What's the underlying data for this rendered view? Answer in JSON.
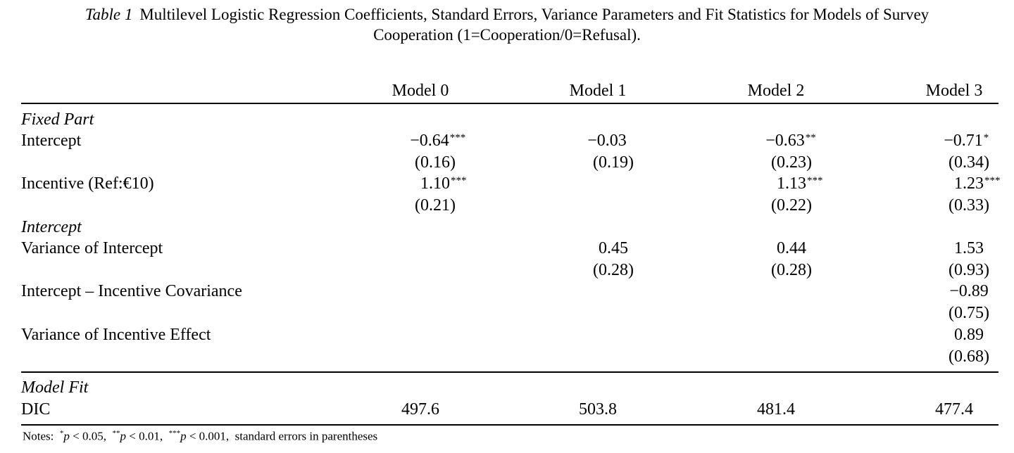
{
  "caption": {
    "label": "Table 1",
    "text": "Multilevel Logistic Regression Coefficients, Standard Errors, Variance Parameters and Fit Statistics for Models of Survey",
    "text2": "Cooperation (1=Cooperation/0=Refusal)."
  },
  "columns": [
    "Model 0",
    "Model 1",
    "Model 2",
    "Model 3"
  ],
  "sections": {
    "fixed": "Fixed Part",
    "intercept": "Intercept",
    "fit": "Model Fit"
  },
  "rows": {
    "intercept": {
      "label": "Intercept",
      "values": [
        "−0.64",
        "−0.03",
        "−0.63",
        "−0.71"
      ],
      "stars": [
        "***",
        "",
        "**",
        "*"
      ],
      "se": [
        "(0.16)",
        "(0.19)",
        "(0.23)",
        "(0.34)"
      ]
    },
    "incentive": {
      "label": "Incentive (Ref:€10)",
      "values": [
        "1.10",
        "",
        "1.13",
        "1.23"
      ],
      "stars": [
        "***",
        "",
        "***",
        "***"
      ],
      "se": [
        "(0.21)",
        "",
        "(0.22)",
        "(0.33)"
      ]
    },
    "var_intercept": {
      "label": "Variance of Intercept",
      "values": [
        "",
        "0.45",
        "0.44",
        "1.53"
      ],
      "se": [
        "",
        "(0.28)",
        "(0.28)",
        "(0.93)"
      ]
    },
    "covariance": {
      "label": "Intercept – Incentive Covariance",
      "values": [
        "",
        "",
        "",
        "−0.89"
      ],
      "se": [
        "",
        "",
        "",
        "(0.75)"
      ]
    },
    "var_incentive": {
      "label": "Variance of Incentive Effect",
      "values": [
        "",
        "",
        "",
        "0.89"
      ],
      "se": [
        "",
        "",
        "",
        "(0.68)"
      ]
    },
    "dic": {
      "label": "DIC",
      "values": [
        "497.6",
        "503.8",
        "481.4",
        "477.4"
      ]
    }
  },
  "notes": {
    "prefix": "Notes:",
    "n1_stars": "*",
    "n1_text": " < 0.05,",
    "n2_stars": "**",
    "n2_text": " < 0.01,",
    "n3_stars": "***",
    "n3_text": " < 0.001,",
    "p": "p",
    "suffix": "standard errors in parentheses"
  }
}
